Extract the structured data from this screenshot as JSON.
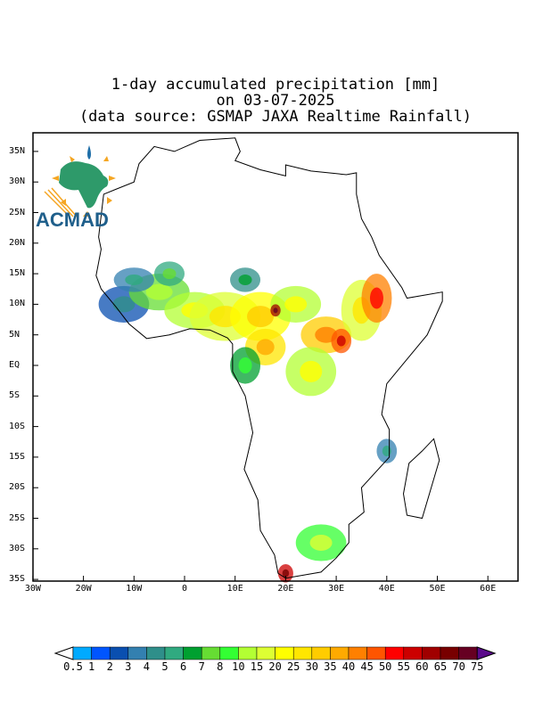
{
  "title": {
    "line1": "1-day accumulated precipitation [mm]",
    "line2": "on 03-07-2025",
    "line3": "(data source: GSMAP JAXA Realtime Rainfall)"
  },
  "logo": {
    "text": "ACMAD"
  },
  "lat_labels": [
    "35N",
    "30N",
    "25N",
    "20N",
    "15N",
    "10N",
    "5N",
    "EQ",
    "5S",
    "10S",
    "15S",
    "20S",
    "25S",
    "30S",
    "35S"
  ],
  "lat_values": [
    35,
    30,
    25,
    20,
    15,
    10,
    5,
    0,
    -5,
    -10,
    -15,
    -20,
    -25,
    -30,
    -35
  ],
  "lon_labels": [
    "30W",
    "20W",
    "10W",
    "0",
    "10E",
    "20E",
    "30E",
    "40E",
    "50E",
    "60E"
  ],
  "lon_values": [
    -30,
    -20,
    -10,
    0,
    10,
    20,
    30,
    40,
    50,
    60
  ],
  "colorbar": {
    "labels": [
      "0.5",
      "1",
      "2",
      "3",
      "4",
      "5",
      "6",
      "7",
      "8",
      "10",
      "15",
      "20",
      "25",
      "30",
      "35",
      "40",
      "45",
      "50",
      "55",
      "60",
      "65",
      "70",
      "75"
    ],
    "colors": [
      "#00aaff",
      "#0055ff",
      "#0a4fb0",
      "#3380b0",
      "#2f8f8a",
      "#30aa80",
      "#00a030",
      "#66dd33",
      "#33ff33",
      "#b3ff33",
      "#ddff33",
      "#ffff00",
      "#ffe600",
      "#ffcc00",
      "#ffaa00",
      "#ff8000",
      "#ff5500",
      "#ff0000",
      "#cc0000",
      "#a00000",
      "#780000",
      "#660022"
    ],
    "over_color": "#5a0a8a",
    "under_color": "#ffffff"
  }
}
